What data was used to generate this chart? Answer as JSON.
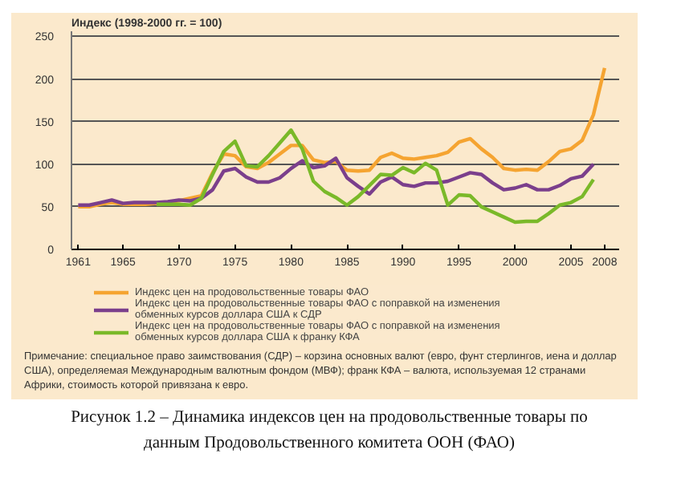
{
  "chart_data": {
    "type": "line",
    "title": "Рисунок 1.2 –  Динамика индексов цен на продовольственные товары по данным Продовольственного комитета ООН (ФАО)",
    "ylabel": "Индекс (1998-2000 гг. = 100)",
    "x": [
      1961,
      1962,
      1963,
      1964,
      1965,
      1966,
      1967,
      1968,
      1969,
      1970,
      1971,
      1972,
      1973,
      1974,
      1975,
      1976,
      1977,
      1978,
      1979,
      1980,
      1981,
      1982,
      1983,
      1984,
      1985,
      1986,
      1987,
      1988,
      1989,
      1990,
      1991,
      1992,
      1993,
      1994,
      1995,
      1996,
      1997,
      1998,
      1999,
      2000,
      2001,
      2002,
      2003,
      2004,
      2005,
      2006,
      2007,
      2008
    ],
    "series": [
      {
        "name": "Индекс цен на продовольственные товары ФАО",
        "color": "#f5a431",
        "values": [
          50,
          50,
          53,
          55,
          53,
          53,
          53,
          54,
          55,
          57,
          60,
          63,
          90,
          112,
          110,
          97,
          95,
          102,
          112,
          122,
          122,
          105,
          102,
          103,
          93,
          92,
          93,
          108,
          113,
          107,
          106,
          108,
          110,
          114,
          126,
          130,
          118,
          108,
          95,
          93,
          94,
          93,
          103,
          115,
          118,
          128,
          158,
          213
        ]
      },
      {
        "name": "Индекс цен на продовольственные товары ФАО с поправкой на изменения обменных курсов доллара США к СДР",
        "color": "#7b3f8c",
        "values": [
          52,
          52,
          55,
          58,
          54,
          55,
          55,
          55,
          56,
          58,
          57,
          60,
          70,
          92,
          95,
          85,
          79,
          79,
          84,
          95,
          104,
          96,
          98,
          107,
          84,
          74,
          65,
          79,
          85,
          76,
          74,
          78,
          78,
          80,
          85,
          90,
          88,
          78,
          70,
          72,
          76,
          70,
          70,
          75,
          83,
          86,
          100,
          null
        ]
      },
      {
        "name": "Индекс цен на продовольственные товары ФАО с поправкой на изменения обменных курсов доллара США к франку КФА",
        "color": "#7ab929",
        "values": [
          null,
          null,
          null,
          null,
          null,
          null,
          null,
          53,
          53,
          53,
          52,
          60,
          88,
          115,
          127,
          98,
          97,
          110,
          125,
          140,
          118,
          80,
          68,
          61,
          52,
          62,
          75,
          88,
          87,
          96,
          90,
          101,
          93,
          52,
          64,
          63,
          50,
          44,
          38,
          32,
          33,
          33,
          42,
          52,
          55,
          62,
          82,
          null
        ]
      }
    ],
    "xlim": [
      1960.4,
      2009.3
    ],
    "xticks": [
      1961,
      1965,
      1970,
      1975,
      1980,
      1985,
      1990,
      1995,
      2000,
      2005,
      2008
    ],
    "ylim": [
      0,
      256
    ],
    "yticks": [
      0,
      50,
      100,
      150,
      200,
      250
    ],
    "grid": "y",
    "legend": "bottom",
    "line_style": "solid",
    "annotations": [
      "Примечание: специальное право заимствования (СДР) – корзина основных валют (евро, фунт стерлингов, иена и доллар США), определяемая Международным валютным фондом (МВФ); франк КФА – валюта, используемая 12 странами Африки, стоимость которой привязана к евро."
    ]
  }
}
